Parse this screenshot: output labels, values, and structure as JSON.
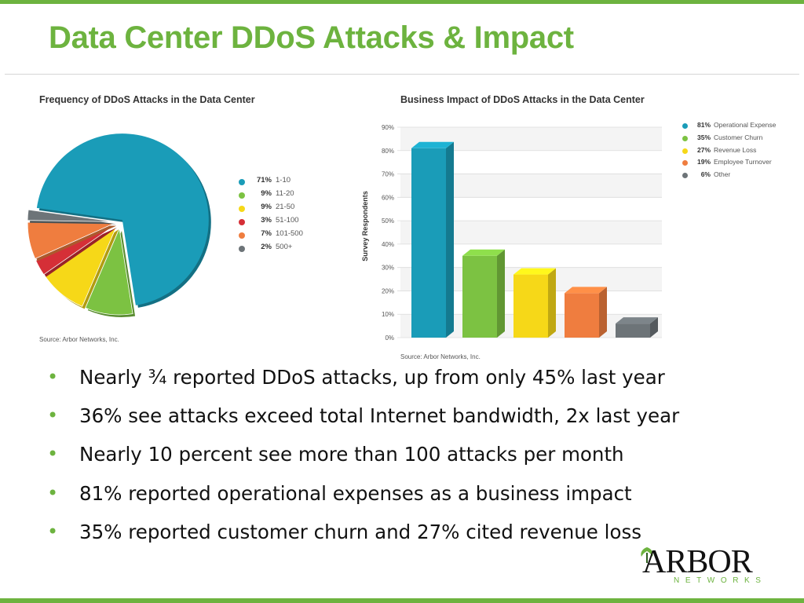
{
  "slide": {
    "title": "Data Center DDoS Attacks & Impact"
  },
  "colors": {
    "brand_green": "#6db33f",
    "teal": "#1a9cb8",
    "green": "#7cc242",
    "yellow": "#f6d818",
    "red": "#d52f37",
    "orange": "#ef7d3f",
    "gray": "#6d7478"
  },
  "chart_data": [
    {
      "type": "pie",
      "title": "Frequency of DDoS Attacks in the Data Center",
      "source": "Source: Arbor Networks, Inc.",
      "slices": [
        {
          "pct": "71%",
          "label": "1-10",
          "value": 71,
          "color": "#1a9cb8"
        },
        {
          "pct": "9%",
          "label": "11-20",
          "value": 9,
          "color": "#7cc242"
        },
        {
          "pct": "9%",
          "label": "21-50",
          "value": 9,
          "color": "#f6d818"
        },
        {
          "pct": "3%",
          "label": "51-100",
          "value": 3,
          "color": "#d52f37"
        },
        {
          "pct": "7%",
          "label": "101-500",
          "value": 7,
          "color": "#ef7d3f"
        },
        {
          "pct": "2%",
          "label": "500+",
          "value": 2,
          "color": "#6d7478"
        }
      ],
      "legend_position": "right"
    },
    {
      "type": "bar",
      "title": "Business Impact of DDoS Attacks in the Data Center",
      "source": "Source: Arbor Networks, Inc.",
      "ylabel": "Survey Respondents",
      "ylim": [
        0,
        90
      ],
      "yticks": [
        "0%",
        "10%",
        "20%",
        "30%",
        "40%",
        "50%",
        "60%",
        "70%",
        "80%",
        "90%"
      ],
      "grid": true,
      "legend_position": "right",
      "bars": [
        {
          "pct": "81%",
          "label": "Operational Expense",
          "value": 81,
          "color": "#1a9cb8"
        },
        {
          "pct": "35%",
          "label": "Customer Churn",
          "value": 35,
          "color": "#7cc242"
        },
        {
          "pct": "27%",
          "label": "Revenue Loss",
          "value": 27,
          "color": "#f6d818"
        },
        {
          "pct": "19%",
          "label": "Employee Turnover",
          "value": 19,
          "color": "#ef7d3f"
        },
        {
          "pct": "6%",
          "label": "Other",
          "value": 6,
          "color": "#6d7478"
        }
      ]
    }
  ],
  "bullets": [
    "Nearly ¾ reported DDoS attacks, up from only 45% last year",
    "36% see attacks exceed total Internet bandwidth, 2x last year",
    "Nearly 10 percent see more than 100 attacks per month",
    "81% reported operational expenses as a business impact",
    "35% reported customer churn and 27% cited revenue loss"
  ],
  "logo": {
    "name": "ARBOR",
    "sub": "NETWORKS",
    "icon": "tree-icon"
  }
}
